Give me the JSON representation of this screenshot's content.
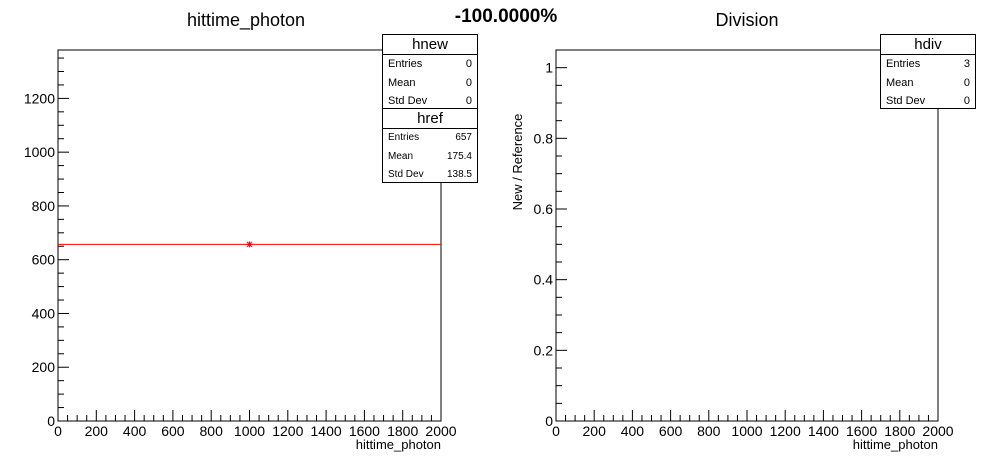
{
  "percent_label": "-100.0000%",
  "chart_data": [
    {
      "type": "line",
      "title": "hittime_photon",
      "xlabel": "hittime_photon",
      "ylabel": "",
      "xlim": [
        0,
        2000
      ],
      "ylim": [
        0,
        1380
      ],
      "xticks": [
        0,
        200,
        400,
        600,
        800,
        1000,
        1200,
        1400,
        1600,
        1800,
        2000
      ],
      "yticks": [
        0,
        200,
        400,
        600,
        800,
        1000,
        1200
      ],
      "series": [
        {
          "name": "href",
          "color": "#ff0000",
          "x_range": [
            0,
            2000
          ],
          "value": 657,
          "marker": "star",
          "marker_x": 1000
        }
      ],
      "stats": [
        {
          "name": "hnew",
          "rows": [
            {
              "label": "Entries",
              "value": "0"
            },
            {
              "label": "Mean",
              "value": "0"
            },
            {
              "label": "Std Dev",
              "value": "0"
            }
          ]
        },
        {
          "name": "href",
          "rows": [
            {
              "label": "Entries",
              "value": "657"
            },
            {
              "label": "Mean",
              "value": "175.4"
            },
            {
              "label": "Std Dev",
              "value": "138.5"
            }
          ]
        }
      ]
    },
    {
      "type": "line",
      "title": "Division",
      "xlabel": "hittime_photon",
      "ylabel": "New / Reference",
      "xlim": [
        0,
        2000
      ],
      "ylim": [
        0,
        1.05
      ],
      "xticks": [
        0,
        200,
        400,
        600,
        800,
        1000,
        1200,
        1400,
        1600,
        1800,
        2000
      ],
      "yticks": [
        0,
        0.2,
        0.4,
        0.6,
        0.8,
        1
      ],
      "series": [],
      "stats": [
        {
          "name": "hdiv",
          "rows": [
            {
              "label": "Entries",
              "value": "3"
            },
            {
              "label": "Mean",
              "value": "0"
            },
            {
              "label": "Std Dev",
              "value": "0"
            }
          ]
        }
      ]
    }
  ]
}
